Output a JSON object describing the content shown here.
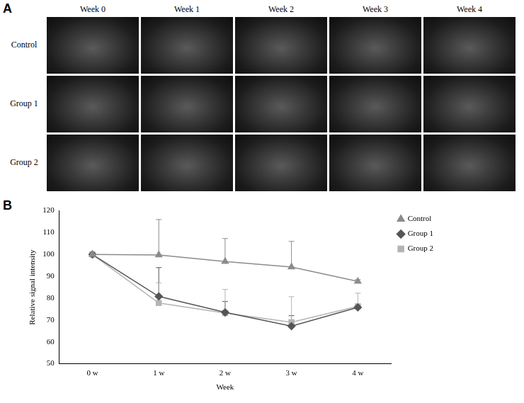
{
  "figure_a": {
    "label": "A",
    "columns": [
      "Week 0",
      "Week 1",
      "Week 2",
      "Week 3",
      "Week 4"
    ],
    "rows": [
      "Control",
      "Group 1",
      "Group 2"
    ]
  },
  "chart_label": "B",
  "chart_data": {
    "type": "line",
    "x_label": "Week",
    "y_label": "Relative signal intensity",
    "categories": [
      "0 w",
      "1 w",
      "2 w",
      "3 w",
      "4 w"
    ],
    "series": [
      {
        "name": "Control",
        "color": "#8c8c8c",
        "marker": "triangle",
        "values": [
          100,
          99.8,
          96.8,
          94.3,
          87.7
        ],
        "error_upper": [
          0,
          16.2,
          10.5,
          11.7,
          0.8
        ]
      },
      {
        "name": "Group 1",
        "color": "#555555",
        "marker": "diamond",
        "values": [
          100,
          80.8,
          73.5,
          67.2,
          75.8
        ],
        "error_upper": [
          0,
          13.2,
          5.0,
          4.8,
          1.0
        ]
      },
      {
        "name": "Group 2",
        "color": "#b4b4b4",
        "marker": "square",
        "values": [
          100,
          77.8,
          73.2,
          69.0,
          76.3
        ],
        "error_upper": [
          0,
          9.2,
          10.8,
          11.7,
          6.0
        ]
      }
    ],
    "ylim": [
      50,
      120
    ],
    "yticks": [
      50,
      60,
      70,
      80,
      90,
      100,
      110,
      120
    ],
    "grid": false,
    "legend": "right"
  }
}
